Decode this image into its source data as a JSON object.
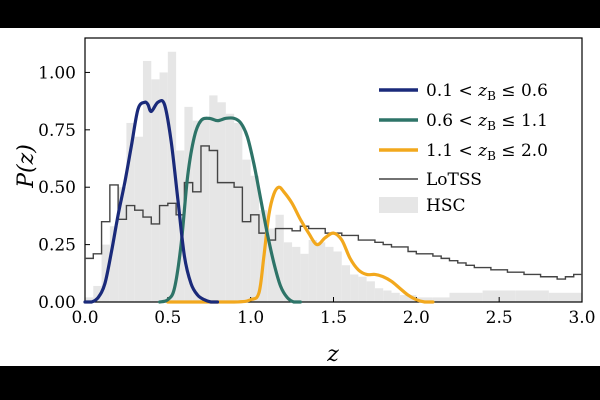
{
  "chart_data": {
    "type": "line",
    "xlabel": "z",
    "ylabel": "P(z)",
    "xlim": [
      0.0,
      3.0
    ],
    "ylim": [
      0.0,
      1.15
    ],
    "xticks": [
      0.0,
      0.5,
      1.0,
      1.5,
      2.0,
      2.5,
      3.0
    ],
    "xtick_labels": [
      "0.0",
      "0.5",
      "1.0",
      "1.5",
      "2.0",
      "2.5",
      "3.0"
    ],
    "yticks": [
      0.0,
      0.25,
      0.5,
      0.75,
      1.0
    ],
    "ytick_labels": [
      "0.00",
      "0.25",
      "0.50",
      "0.75",
      "1.00"
    ],
    "legend_position": "top-right",
    "colors": {
      "low": "#1a2a7a",
      "mid": "#2e7468",
      "high": "#f2a81d",
      "lotss": "#444444",
      "hsc": "#e6e6e6"
    },
    "series": [
      {
        "key": "low",
        "name": "0.1 < zB ≤ 0.6",
        "label": {
          "pre": "0.1 < ",
          "var": "z",
          "sub": "B",
          "post": " ≤ 0.6"
        },
        "style": "line",
        "x": [
          0.0,
          0.04,
          0.08,
          0.12,
          0.16,
          0.2,
          0.24,
          0.28,
          0.32,
          0.36,
          0.38,
          0.4,
          0.44,
          0.48,
          0.52,
          0.56,
          0.6,
          0.64,
          0.68,
          0.72,
          0.76,
          0.8
        ],
        "y": [
          0.0,
          0.0,
          0.02,
          0.08,
          0.22,
          0.38,
          0.52,
          0.68,
          0.84,
          0.87,
          0.86,
          0.83,
          0.87,
          0.86,
          0.7,
          0.45,
          0.2,
          0.08,
          0.03,
          0.01,
          0.0,
          0.0
        ]
      },
      {
        "key": "mid",
        "name": "0.6 < zB ≤ 1.1",
        "label": {
          "pre": "0.6 < ",
          "var": "z",
          "sub": "B",
          "post": " ≤ 1.1"
        },
        "style": "line",
        "x": [
          0.45,
          0.5,
          0.54,
          0.58,
          0.62,
          0.66,
          0.7,
          0.75,
          0.8,
          0.85,
          0.9,
          0.94,
          0.98,
          1.02,
          1.06,
          1.1,
          1.14,
          1.18,
          1.22,
          1.26,
          1.3
        ],
        "y": [
          0.0,
          0.01,
          0.06,
          0.25,
          0.55,
          0.72,
          0.79,
          0.8,
          0.79,
          0.8,
          0.8,
          0.78,
          0.72,
          0.6,
          0.45,
          0.3,
          0.17,
          0.07,
          0.02,
          0.0,
          0.0
        ]
      },
      {
        "key": "high",
        "name": "1.1 < zB ≤ 2.0",
        "label": {
          "pre": "1.1 < ",
          "var": "z",
          "sub": "B",
          "post": " ≤ 2.0"
        },
        "style": "line",
        "x": [
          0.5,
          0.9,
          1.0,
          1.05,
          1.08,
          1.11,
          1.14,
          1.17,
          1.2,
          1.25,
          1.3,
          1.35,
          1.4,
          1.45,
          1.5,
          1.55,
          1.6,
          1.65,
          1.7,
          1.75,
          1.8,
          1.85,
          1.9,
          1.95,
          2.0,
          2.05,
          2.1
        ],
        "y": [
          0.0,
          0.0,
          0.01,
          0.04,
          0.2,
          0.38,
          0.47,
          0.5,
          0.48,
          0.43,
          0.36,
          0.3,
          0.25,
          0.28,
          0.3,
          0.27,
          0.19,
          0.14,
          0.12,
          0.12,
          0.11,
          0.09,
          0.06,
          0.03,
          0.01,
          0.0,
          0.0
        ]
      },
      {
        "key": "lotss",
        "name": "LoTSS",
        "label": {
          "pre": "LoTSS",
          "var": "",
          "sub": "",
          "post": ""
        },
        "style": "step",
        "x": [
          0.0,
          0.05,
          0.1,
          0.15,
          0.2,
          0.25,
          0.3,
          0.35,
          0.4,
          0.45,
          0.5,
          0.55,
          0.6,
          0.65,
          0.7,
          0.75,
          0.8,
          0.85,
          0.9,
          0.95,
          1.0,
          1.05,
          1.1,
          1.15,
          1.2,
          1.25,
          1.3,
          1.35,
          1.4,
          1.45,
          1.5,
          1.55,
          1.6,
          1.65,
          1.7,
          1.75,
          1.8,
          1.85,
          1.9,
          1.95,
          2.0,
          2.05,
          2.1,
          2.15,
          2.2,
          2.25,
          2.3,
          2.35,
          2.4,
          2.45,
          2.5,
          2.55,
          2.6,
          2.65,
          2.7,
          2.75,
          2.8,
          2.85,
          2.9,
          2.95
        ],
        "y": [
          0.19,
          0.21,
          0.35,
          0.51,
          0.36,
          0.42,
          0.4,
          0.37,
          0.34,
          0.42,
          0.43,
          0.38,
          0.52,
          0.48,
          0.68,
          0.66,
          0.52,
          0.52,
          0.5,
          0.35,
          0.38,
          0.3,
          0.27,
          0.32,
          0.32,
          0.31,
          0.33,
          0.32,
          0.32,
          0.3,
          0.3,
          0.29,
          0.29,
          0.27,
          0.27,
          0.26,
          0.25,
          0.24,
          0.24,
          0.22,
          0.21,
          0.21,
          0.2,
          0.19,
          0.18,
          0.17,
          0.16,
          0.15,
          0.15,
          0.14,
          0.14,
          0.13,
          0.13,
          0.12,
          0.12,
          0.11,
          0.11,
          0.1,
          0.11,
          0.12
        ]
      },
      {
        "key": "hsc",
        "name": "HSC",
        "label": {
          "pre": "HSC",
          "var": "",
          "sub": "",
          "post": ""
        },
        "style": "filled-step",
        "x": [
          0.0,
          0.05,
          0.1,
          0.15,
          0.2,
          0.25,
          0.3,
          0.35,
          0.4,
          0.45,
          0.5,
          0.55,
          0.6,
          0.65,
          0.7,
          0.75,
          0.8,
          0.85,
          0.9,
          0.95,
          1.0,
          1.05,
          1.1,
          1.15,
          1.2,
          1.25,
          1.3,
          1.35,
          1.4,
          1.45,
          1.5,
          1.55,
          1.6,
          1.65,
          1.7,
          1.75,
          1.8,
          1.85,
          1.9,
          1.95,
          2.0,
          2.1,
          2.2,
          2.4,
          2.6,
          2.8
        ],
        "y": [
          0.02,
          0.07,
          0.25,
          0.33,
          0.5,
          0.78,
          0.72,
          1.05,
          0.97,
          1.0,
          1.09,
          0.66,
          0.85,
          0.79,
          0.8,
          0.9,
          0.87,
          0.82,
          0.78,
          0.62,
          0.55,
          0.4,
          0.32,
          0.38,
          0.26,
          0.24,
          0.21,
          0.27,
          0.26,
          0.24,
          0.22,
          0.16,
          0.12,
          0.11,
          0.09,
          0.06,
          0.05,
          0.04,
          0.03,
          0.03,
          0.02,
          0.02,
          0.04,
          0.05,
          0.05,
          0.04
        ]
      }
    ]
  }
}
